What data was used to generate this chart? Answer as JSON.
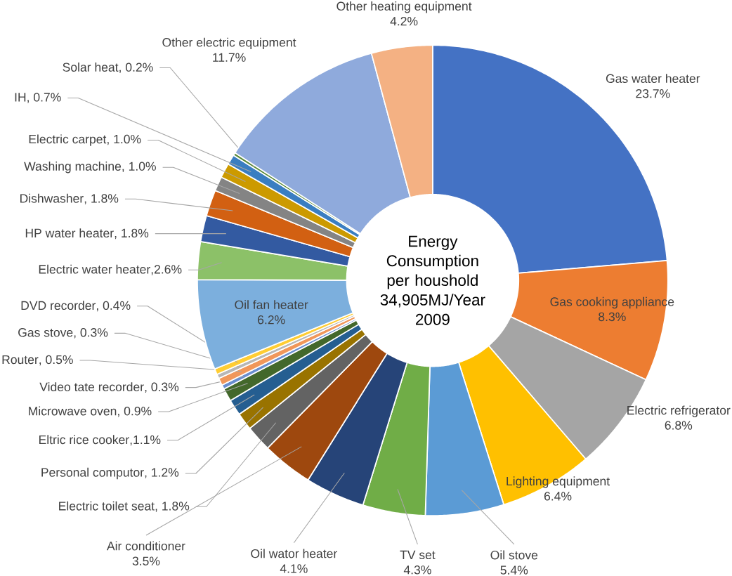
{
  "chart_data": {
    "type": "donut",
    "title": "Energy Consumption per houshold",
    "subtitle": "34,905MJ/Year 2009",
    "categories": [
      "Gas water heater",
      "Gas cooking appliance",
      "Electric refrigerator",
      "Lighting equipment",
      "Oil stove",
      "TV set",
      "Oil wator heater",
      "Air conditioner",
      "Electric toilet seat",
      "Personal computor",
      "Eltric rice cooker",
      "Microwave oven",
      "Video tate recorder",
      "Router",
      "Gas stove",
      "DVD recorder",
      "Oil fan heater",
      "Electric water heater",
      "HP water heater",
      "Dishwasher",
      "Washing machine",
      "Electric carpet",
      "IH",
      "Solar heat",
      "Other electric equipment",
      "Other heating equipment"
    ],
    "values": [
      23.7,
      8.3,
      6.8,
      6.4,
      5.4,
      4.3,
      4.1,
      3.5,
      1.8,
      1.2,
      1.1,
      0.9,
      0.3,
      0.5,
      0.3,
      0.4,
      6.2,
      2.6,
      1.8,
      1.8,
      1.0,
      1.0,
      0.7,
      0.2,
      11.7,
      4.2
    ],
    "value_labels": [
      "23.7%",
      "8.3%",
      "6.8%",
      "6.4%",
      "5.4%",
      "4.3%",
      "4.1%",
      "3.5%",
      ", 1.8%",
      ", 1.2%",
      ",1.1%",
      ", 0.9%",
      ", 0.3%",
      ", 0.5%",
      ", 0.3%",
      ", 0.4%",
      "6.2%",
      ",2.6%",
      ", 1.8%",
      ", 1.8%",
      ", 1.0%",
      ", 1.0%",
      ", 0.7%",
      ", 0.2%",
      "11.7%",
      "4.2%"
    ],
    "colors": [
      "#4472c4",
      "#ed7d31",
      "#a5a5a5",
      "#ffc000",
      "#5b9bd5",
      "#70ad47",
      "#264478",
      "#9e480e",
      "#636363",
      "#997300",
      "#255e91",
      "#43682b",
      "#698ed0",
      "#f1975a",
      "#b7b7b7",
      "#ffcd33",
      "#7cafdd",
      "#8cc168",
      "#335aa1",
      "#d26012",
      "#848484",
      "#cc9a00",
      "#3a7ec1",
      "#5a8a39",
      "#8faadc",
      "#f4b183"
    ]
  }
}
